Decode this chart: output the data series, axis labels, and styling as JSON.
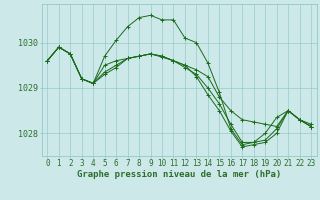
{
  "title": "Graphe pression niveau de la mer (hPa)",
  "xlabel_hours": [
    0,
    1,
    2,
    3,
    4,
    5,
    6,
    7,
    8,
    9,
    10,
    11,
    12,
    13,
    14,
    15,
    16,
    17,
    18,
    19,
    20,
    21,
    22,
    23
  ],
  "series": [
    [
      1029.6,
      1029.9,
      1029.75,
      1029.2,
      1029.1,
      1029.5,
      1029.6,
      1029.65,
      1029.7,
      1029.75,
      1029.7,
      1029.6,
      1029.5,
      1029.4,
      1029.25,
      1028.8,
      1028.5,
      1028.3,
      1028.25,
      1028.2,
      1028.15,
      1028.5,
      1028.3,
      1028.2
    ],
    [
      1029.6,
      1029.9,
      1029.75,
      1029.2,
      1029.1,
      1029.7,
      1030.05,
      1030.35,
      1030.55,
      1030.6,
      1030.5,
      1030.5,
      1030.1,
      1030.0,
      1029.55,
      1028.9,
      1028.1,
      1027.75,
      1027.8,
      1028.0,
      1028.35,
      1028.5,
      1028.3,
      1028.15
    ],
    [
      1029.6,
      1029.9,
      1029.75,
      1029.2,
      1029.1,
      1029.3,
      1029.45,
      1029.65,
      1029.7,
      1029.75,
      1029.7,
      1029.6,
      1029.5,
      1029.25,
      1028.85,
      1028.5,
      1028.05,
      1027.7,
      1027.75,
      1027.8,
      1028.0,
      1028.5,
      1028.3,
      1028.15
    ],
    [
      1029.6,
      1029.9,
      1029.75,
      1029.2,
      1029.1,
      1029.35,
      1029.5,
      1029.65,
      1029.7,
      1029.75,
      1029.68,
      1029.6,
      1029.45,
      1029.3,
      1029.0,
      1028.65,
      1028.2,
      1027.8,
      1027.8,
      1027.85,
      1028.1,
      1028.5,
      1028.3,
      1028.15
    ]
  ],
  "line_color": "#1a6b1a",
  "marker_color": "#1a6b1a",
  "bg_color": "#cce8e8",
  "grid_color": "#88c4c4",
  "axis_color": "#2d6e2d",
  "ylim": [
    1027.5,
    1030.85
  ],
  "yticks": [
    1028,
    1029,
    1030
  ],
  "label_fontsize": 5.5,
  "title_fontsize": 6.5,
  "marker_size": 2.5,
  "linewidth": 0.7
}
